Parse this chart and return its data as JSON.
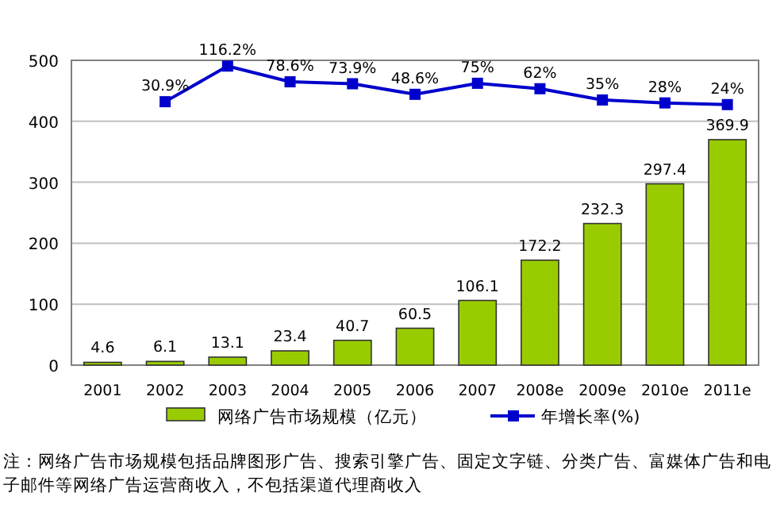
{
  "chart_data": {
    "type": "bar",
    "categories": [
      "2001",
      "2002",
      "2003",
      "2004",
      "2005",
      "2006",
      "2007",
      "2008e",
      "2009e",
      "2010e",
      "2011e"
    ],
    "series": [
      {
        "name": "网络广告市场规模（亿元）",
        "color": "#99cc00",
        "values": [
          4.6,
          6.1,
          13.1,
          23.4,
          40.7,
          60.5,
          106.1,
          172.2,
          232.3,
          297.4,
          369.9
        ]
      },
      {
        "name": "年增长率(%)",
        "type": "line",
        "axis": "y2",
        "color": "#0000cc",
        "marker": "square",
        "values": [
          null,
          30.9,
          116.2,
          78.6,
          73.9,
          48.6,
          75,
          62,
          35,
          28,
          24
        ],
        "value_labels": [
          null,
          "30.9%",
          "116.2%",
          "78.6%",
          "73.9%",
          "48.6%",
          "75%",
          "62%",
          "35%",
          "28%",
          "24%"
        ]
      }
    ],
    "ylim": [
      0,
      500
    ],
    "yticks": [
      0,
      100,
      200,
      300,
      400,
      500
    ],
    "y2lim": [
      -600,
      130
    ],
    "tick_labels": "xy",
    "grid": "y",
    "legend": "bottom",
    "data_labels": true,
    "annotations": [
      "注：网络广告市场规模包括品牌图形广告、搜索引擎广告、固定文字链、分类广告、富媒体广告和电子邮件等网络广告运营商收入，不包括渠道代理商收入"
    ]
  }
}
